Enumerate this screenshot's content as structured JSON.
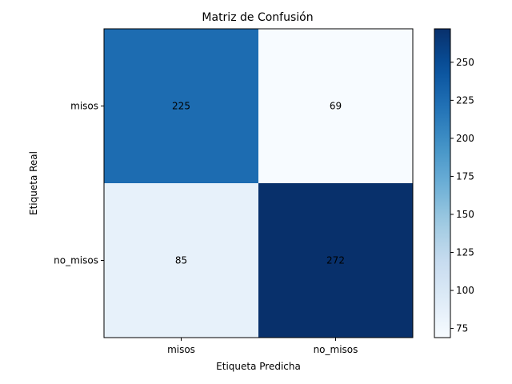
{
  "chart_data": {
    "type": "heatmap",
    "title": "Matriz de Confusión",
    "xlabel": "Etiqueta Predicha",
    "ylabel": "Etiqueta Real",
    "x_categories": [
      "misos",
      "no_misos"
    ],
    "y_categories": [
      "misos",
      "no_misos"
    ],
    "values": [
      [
        225,
        69
      ],
      [
        85,
        272
      ]
    ],
    "colormap": "Blues",
    "colorbar": {
      "range": [
        69,
        272
      ],
      "ticks": [
        75,
        100,
        125,
        150,
        175,
        200,
        225,
        250
      ]
    },
    "colors": {
      "low": "#f7fbff",
      "high": "#08306b",
      "text": "#000000"
    }
  }
}
